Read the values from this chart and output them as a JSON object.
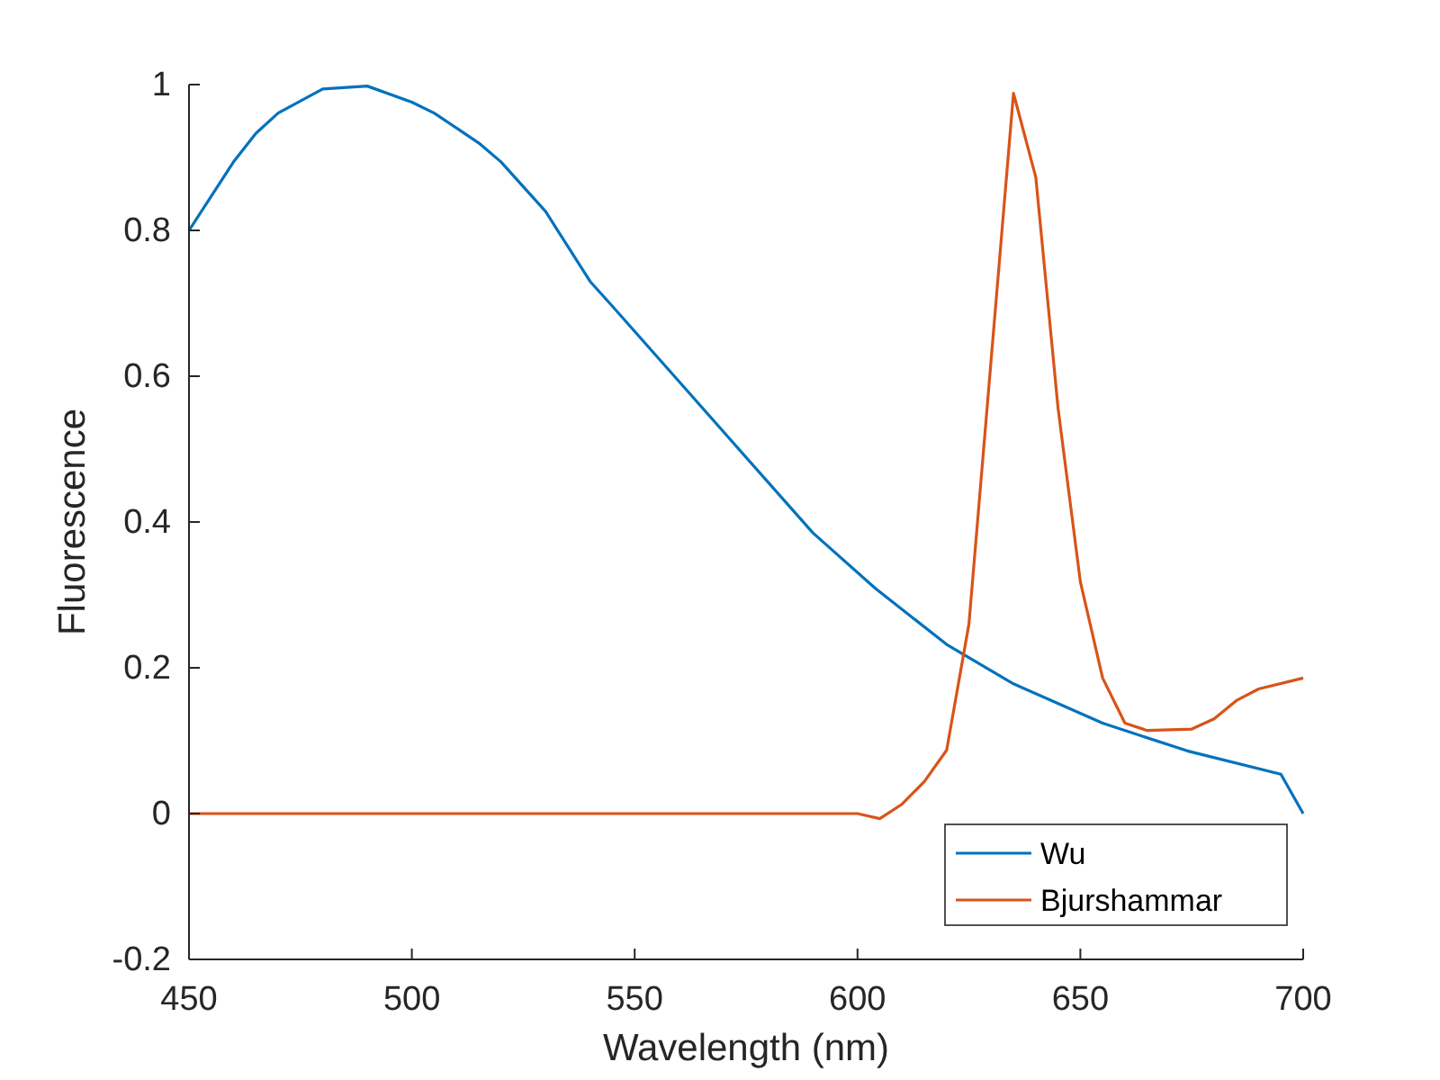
{
  "chart_data": {
    "type": "line",
    "xlabel": "Wavelength (nm)",
    "ylabel": "Fluorescence",
    "xlim": [
      450,
      700
    ],
    "xticks": [
      450,
      500,
      550,
      600,
      650,
      700
    ],
    "ylim": [
      -0.2,
      1
    ],
    "yticks": [
      {
        "value": -0.2,
        "label": "-0.2"
      },
      0,
      {
        "value": 0.2,
        "label": "0.2"
      },
      {
        "value": 0.4,
        "label": "0.4"
      },
      {
        "value": 0.6,
        "label": "0.6"
      },
      {
        "value": 0.8,
        "label": "0.8"
      },
      1
    ],
    "legend": "bottom right",
    "grid": false,
    "line_style": "solid",
    "marker": "none",
    "series": [
      {
        "name": "Wu",
        "color": "#0072bd",
        "x": [
          450,
          460,
          465,
          470,
          480,
          490,
          500,
          505,
          515,
          520,
          530,
          540,
          545,
          590,
          604,
          620,
          635,
          655,
          674,
          695,
          700
        ],
        "values": [
          0.8,
          0.894,
          0.933,
          0.961,
          0.994,
          0.998,
          0.976,
          0.961,
          0.92,
          0.894,
          0.826,
          0.73,
          0.696,
          0.385,
          0.309,
          0.232,
          0.178,
          0.124,
          0.086,
          0.054,
          0.0
        ]
      },
      {
        "name": "Bjurshammar",
        "color": "#d95319",
        "x": [
          450,
          600,
          605,
          610,
          615,
          620,
          625,
          635,
          640,
          645,
          650,
          655,
          660,
          665,
          675,
          680,
          685,
          690,
          700
        ],
        "values": [
          0,
          0,
          -0.007,
          0.013,
          0.044,
          0.087,
          0.26,
          0.988,
          0.873,
          0.556,
          0.318,
          0.186,
          0.124,
          0.114,
          0.116,
          0.13,
          0.155,
          0.171,
          0.186
        ]
      }
    ]
  }
}
